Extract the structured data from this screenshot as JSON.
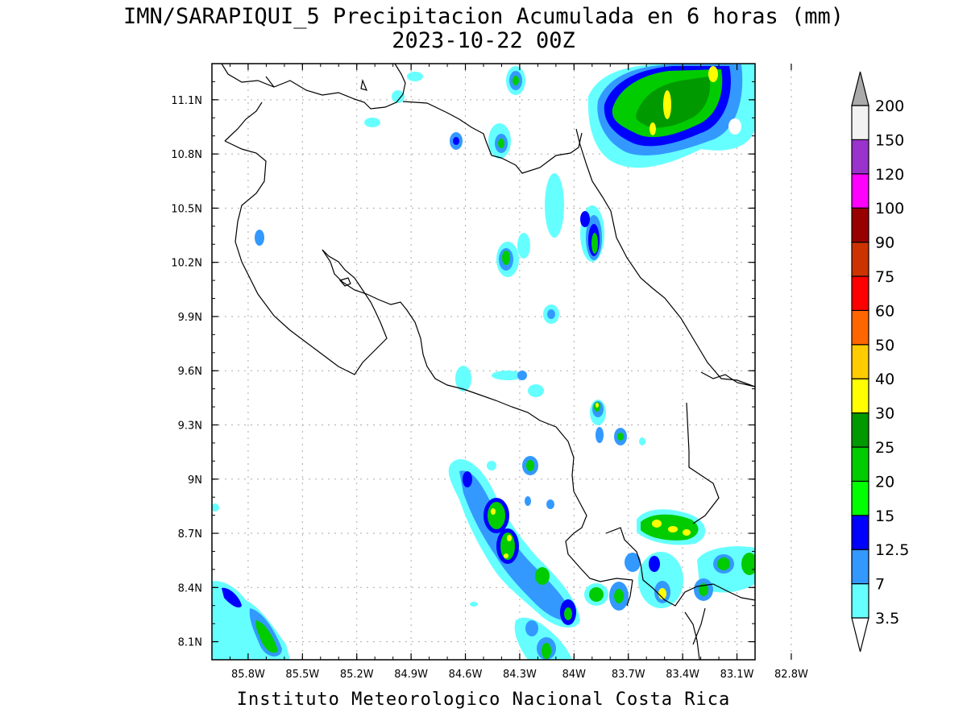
{
  "title_line1": "IMN/SARAPIQUI_5 Precipitacion Acumulada en 6 horas (mm)",
  "title_line2": "2023-10-22 00Z",
  "footer": "Instituto Meteorologico Nacional Costa Rica",
  "map": {
    "lon_range": [
      -86.0,
      -83.0
    ],
    "lat_range": [
      8.0,
      11.3
    ],
    "lon_ticks": [
      {
        "value": -85.8,
        "label": "85.8W"
      },
      {
        "value": -85.5,
        "label": "85.5W"
      },
      {
        "value": -85.2,
        "label": "85.2W"
      },
      {
        "value": -84.9,
        "label": "84.9W"
      },
      {
        "value": -84.6,
        "label": "84.6W"
      },
      {
        "value": -84.3,
        "label": "84.3W"
      },
      {
        "value": -84.0,
        "label": "84W"
      },
      {
        "value": -83.7,
        "label": "83.7W"
      },
      {
        "value": -83.4,
        "label": "83.4W"
      },
      {
        "value": -83.1,
        "label": "83.1W"
      },
      {
        "value": -82.8,
        "label": "82.8W"
      }
    ],
    "lat_ticks": [
      {
        "value": 11.1,
        "label": "11.1N"
      },
      {
        "value": 10.8,
        "label": "10.8N"
      },
      {
        "value": 10.5,
        "label": "10.5N"
      },
      {
        "value": 10.2,
        "label": "10.2N"
      },
      {
        "value": 9.9,
        "label": "9.9N"
      },
      {
        "value": 9.6,
        "label": "9.6N"
      },
      {
        "value": 9.3,
        "label": "9.3N"
      },
      {
        "value": 9.0,
        "label": "9N"
      },
      {
        "value": 8.7,
        "label": "8.7N"
      },
      {
        "value": 8.4,
        "label": "8.4N"
      },
      {
        "value": 8.1,
        "label": "8.1N"
      }
    ],
    "grid": true
  },
  "legend": {
    "units": "mm",
    "bins": [
      {
        "label": "3.5",
        "color": "#66ffff"
      },
      {
        "label": "7",
        "color": "#3399ff"
      },
      {
        "label": "12.5",
        "color": "#0000ff"
      },
      {
        "label": "15",
        "color": "#00ff00"
      },
      {
        "label": "20",
        "color": "#00cc00"
      },
      {
        "label": "25",
        "color": "#009900"
      },
      {
        "label": "30",
        "color": "#ffff00"
      },
      {
        "label": "40",
        "color": "#ffcc00"
      },
      {
        "label": "50",
        "color": "#ff6600"
      },
      {
        "label": "60",
        "color": "#ff0000"
      },
      {
        "label": "75",
        "color": "#cc3300"
      },
      {
        "label": "90",
        "color": "#990000"
      },
      {
        "label": "100",
        "color": "#ff00ff"
      },
      {
        "label": "120",
        "color": "#9933cc"
      },
      {
        "label": "150",
        "color": "#f2f2f2"
      },
      {
        "label": "200",
        "color": "#aaaaaa"
      }
    ]
  }
}
